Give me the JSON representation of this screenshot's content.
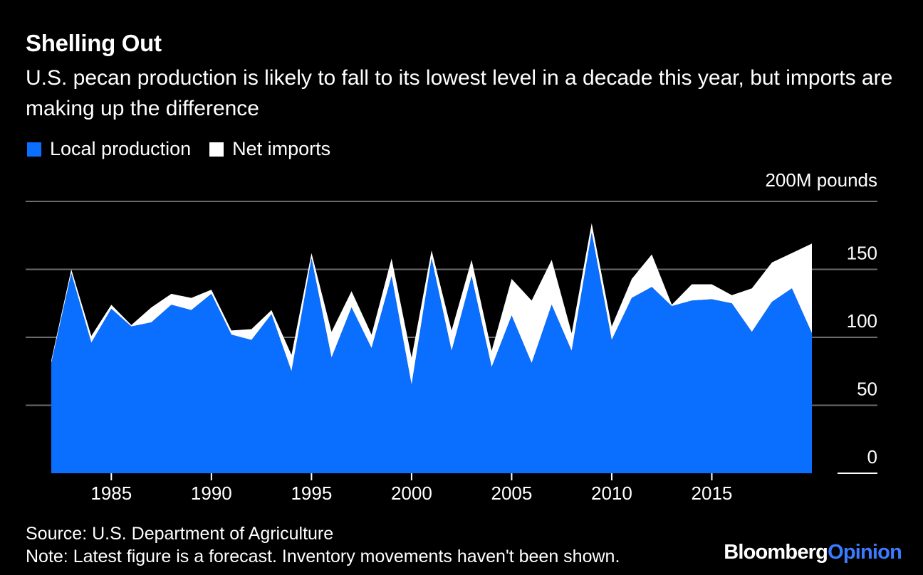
{
  "header": {
    "title": "Shelling Out",
    "subtitle": "U.S. pecan production is likely to fall to its lowest level in a decade this year, but imports are making up the difference"
  },
  "legend": [
    {
      "label": "Local production",
      "color": "#0a6eff"
    },
    {
      "label": "Net imports",
      "color": "#ffffff"
    }
  ],
  "footer": {
    "source": "Source: U.S. Department of Agriculture",
    "note": "Note: Latest figure is a forecast. Inventory movements haven't been shown."
  },
  "brand": {
    "part1": "Bloomberg",
    "part2": "Opinion"
  },
  "chart_data": {
    "type": "area",
    "stacked": true,
    "title": "Shelling Out",
    "y_unit_label": "200M pounds",
    "ylim": [
      0,
      200
    ],
    "xlim": [
      1982,
      2020
    ],
    "y_ticks": [
      0,
      50,
      100,
      150
    ],
    "y_tick_labels": [
      "0",
      "50",
      "100",
      "150"
    ],
    "x_ticks": [
      1985,
      1990,
      1995,
      2000,
      2005,
      2010,
      2015
    ],
    "grid": true,
    "legend_position": "top-left",
    "x": [
      1982,
      1983,
      1984,
      1985,
      1986,
      1987,
      1988,
      1989,
      1990,
      1991,
      1992,
      1993,
      1994,
      1995,
      1996,
      1997,
      1998,
      1999,
      2000,
      2001,
      2002,
      2003,
      2004,
      2005,
      2006,
      2007,
      2008,
      2009,
      2010,
      2011,
      2012,
      2013,
      2014,
      2015,
      2016,
      2017,
      2018,
      2019,
      2020
    ],
    "series": [
      {
        "name": "Local production",
        "color": "#0a6eff",
        "values": [
          81,
          147,
          96,
          121,
          108,
          111,
          124,
          120,
          132,
          102,
          98,
          117,
          75,
          158,
          85,
          122,
          92,
          145,
          65,
          158,
          90,
          145,
          78,
          116,
          81,
          124,
          90,
          177,
          98,
          129,
          137,
          123,
          127,
          128,
          125,
          104,
          126,
          136,
          103
        ]
      },
      {
        "name": "Net imports",
        "color": "#ffffff",
        "values": [
          2,
          3,
          5,
          3,
          1,
          11,
          8,
          9,
          3,
          3,
          8,
          3,
          12,
          4,
          19,
          12,
          10,
          13,
          20,
          6,
          15,
          12,
          12,
          27,
          46,
          33,
          13,
          7,
          10,
          14,
          24,
          1,
          12,
          11,
          6,
          32,
          29,
          26,
          66
        ]
      }
    ]
  }
}
